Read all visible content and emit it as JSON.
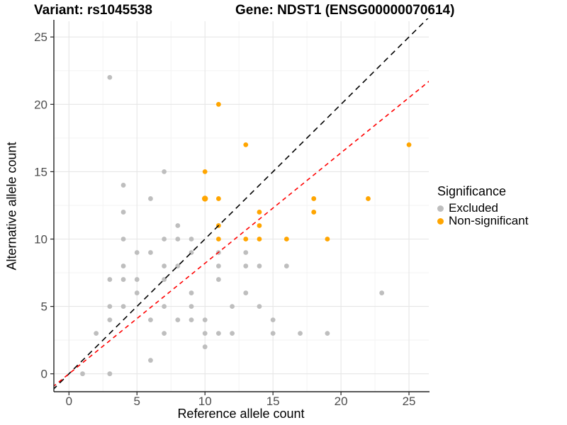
{
  "header": {
    "variant_title": "Variant: rs1045538",
    "gene_title": "Gene: NDST1 (ENSG00000070614)"
  },
  "legend": {
    "title": "Significance",
    "items": [
      {
        "label": "Excluded",
        "color": "#BEBEBE"
      },
      {
        "label": "Non-significant",
        "color": "#FFA500"
      }
    ]
  },
  "chart_data": {
    "type": "scatter",
    "title": "Variant: rs1045538 | Gene: NDST1 (ENSG00000070614)",
    "xlabel": "Reference allele count",
    "ylabel": "Alternative allele count",
    "xlim": [
      -1.2,
      26.5
    ],
    "ylim": [
      -1.3,
      26.2
    ],
    "x_ticks": [
      0,
      5,
      10,
      15,
      20,
      25
    ],
    "y_ticks": [
      0,
      5,
      10,
      15,
      20,
      25
    ],
    "x_minor_ticks": [
      2.5,
      7.5,
      12.5,
      17.5,
      22.5
    ],
    "y_minor_ticks": [
      2.5,
      7.5,
      12.5,
      17.5,
      22.5
    ],
    "grid": true,
    "legend_position": "right",
    "series": [
      {
        "name": "Excluded",
        "color": "#BEBEBE",
        "points": [
          [
            1,
            0
          ],
          [
            3,
            0
          ],
          [
            6,
            1
          ],
          [
            10,
            2
          ],
          [
            2,
            3
          ],
          [
            7,
            3
          ],
          [
            10,
            3
          ],
          [
            11,
            3
          ],
          [
            12,
            3
          ],
          [
            15,
            3
          ],
          [
            17,
            3
          ],
          [
            19,
            3
          ],
          [
            3,
            4
          ],
          [
            6,
            4
          ],
          [
            8,
            4
          ],
          [
            9,
            4
          ],
          [
            10,
            4
          ],
          [
            15,
            4
          ],
          [
            3,
            5
          ],
          [
            4,
            5
          ],
          [
            7,
            5
          ],
          [
            9,
            5
          ],
          [
            12,
            5
          ],
          [
            14,
            5
          ],
          [
            5,
            6
          ],
          [
            9,
            6
          ],
          [
            13,
            6
          ],
          [
            23,
            6
          ],
          [
            3,
            7
          ],
          [
            4,
            7
          ],
          [
            5,
            7
          ],
          [
            7,
            7
          ],
          [
            11,
            7
          ],
          [
            4,
            8
          ],
          [
            7,
            8
          ],
          [
            8,
            8
          ],
          [
            11,
            8
          ],
          [
            13,
            8
          ],
          [
            14,
            8
          ],
          [
            16,
            8
          ],
          [
            5,
            9
          ],
          [
            6,
            9
          ],
          [
            9,
            9
          ],
          [
            11,
            9
          ],
          [
            13,
            9
          ],
          [
            4,
            10
          ],
          [
            7,
            10
          ],
          [
            8,
            10
          ],
          [
            9,
            10
          ],
          [
            8,
            11
          ],
          [
            4,
            12
          ],
          [
            6,
            13
          ],
          [
            4,
            14
          ],
          [
            7,
            15
          ],
          [
            3,
            22
          ]
        ]
      },
      {
        "name": "Non-significant",
        "color": "#FFA500",
        "points": [
          [
            11,
            20
          ],
          [
            13,
            17
          ],
          [
            25,
            17
          ],
          [
            10,
            15
          ],
          [
            10,
            13,
            4.2
          ],
          [
            11,
            13
          ],
          [
            18,
            13
          ],
          [
            22,
            13
          ],
          [
            14,
            12
          ],
          [
            18,
            12
          ],
          [
            11,
            11
          ],
          [
            14,
            11
          ],
          [
            11,
            10
          ],
          [
            13,
            10
          ],
          [
            14,
            10
          ],
          [
            16,
            10
          ],
          [
            19,
            10
          ]
        ]
      }
    ],
    "lines": [
      {
        "name": "identity-line",
        "slope": 1,
        "intercept": 0,
        "color": "#000000",
        "style": "dashed"
      },
      {
        "name": "expected-ratio-line",
        "slope": 0.82,
        "intercept": 0,
        "color": "#FF0000",
        "style": "dashed"
      }
    ]
  },
  "colors": {
    "grid_major": "#E6E6E6",
    "grid_minor": "#F3F3F3",
    "axis_line": "#222222",
    "tick_label": "#4D4D4D"
  }
}
